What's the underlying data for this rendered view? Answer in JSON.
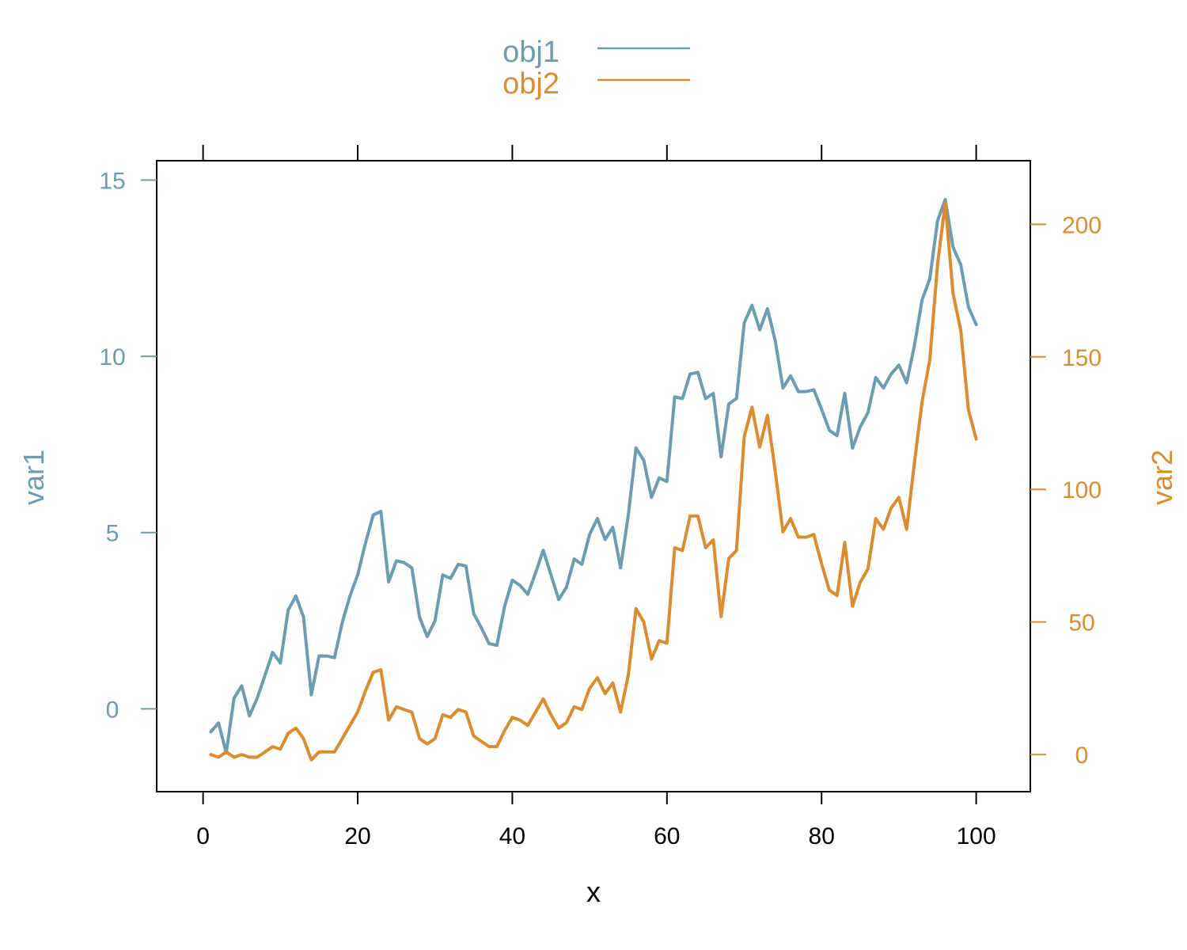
{
  "chart_data": {
    "type": "line",
    "title": "",
    "xlabel": "x",
    "ylabel_left": "var1",
    "ylabel_right": "var2",
    "xlim": [
      -6,
      107
    ],
    "ylim_left": [
      -2.35,
      15.55
    ],
    "ylim_right": [
      -14,
      224
    ],
    "x_ticks": [
      0,
      20,
      40,
      60,
      80,
      100
    ],
    "y_left_ticks": [
      0,
      5,
      10,
      15
    ],
    "y_right_ticks": [
      0,
      50,
      100,
      150,
      200
    ],
    "legend_position": "top-center",
    "x": [
      1,
      2,
      3,
      4,
      5,
      6,
      7,
      8,
      9,
      10,
      11,
      12,
      13,
      14,
      15,
      16,
      17,
      18,
      19,
      20,
      21,
      22,
      23,
      24,
      25,
      26,
      27,
      28,
      29,
      30,
      31,
      32,
      33,
      34,
      35,
      36,
      37,
      38,
      39,
      40,
      41,
      42,
      43,
      44,
      45,
      46,
      47,
      48,
      49,
      50,
      51,
      52,
      53,
      54,
      55,
      56,
      57,
      58,
      59,
      60,
      61,
      62,
      63,
      64,
      65,
      66,
      67,
      68,
      69,
      70,
      71,
      72,
      73,
      74,
      75,
      76,
      77,
      78,
      79,
      80,
      81,
      82,
      83,
      84,
      85,
      86,
      87,
      88,
      89,
      90,
      91,
      92,
      93,
      94,
      95,
      96,
      97,
      98,
      99,
      100
    ],
    "series": [
      {
        "name": "obj1",
        "axis": "left",
        "color": "#6b9cb2",
        "values": [
          -0.65,
          -0.4,
          -1.25,
          0.3,
          0.65,
          -0.2,
          0.3,
          0.95,
          1.6,
          1.3,
          2.8,
          3.2,
          2.6,
          0.4,
          1.5,
          1.5,
          1.45,
          2.45,
          3.2,
          3.8,
          4.7,
          5.5,
          5.6,
          3.6,
          4.2,
          4.15,
          4.0,
          2.6,
          2.05,
          2.5,
          3.8,
          3.7,
          4.1,
          4.05,
          2.7,
          2.3,
          1.85,
          1.8,
          2.9,
          3.65,
          3.5,
          3.25,
          3.85,
          4.5,
          3.8,
          3.1,
          3.45,
          4.25,
          4.1,
          4.95,
          5.4,
          4.8,
          5.15,
          4.0,
          5.5,
          7.4,
          7.05,
          6.0,
          6.55,
          6.45,
          8.85,
          8.8,
          9.5,
          9.55,
          8.8,
          8.95,
          7.15,
          8.65,
          8.8,
          10.95,
          11.45,
          10.75,
          11.35,
          10.45,
          9.1,
          9.45,
          9.0,
          9.0,
          9.05,
          8.5,
          7.9,
          7.75,
          8.95,
          7.4,
          8.0,
          8.4,
          9.4,
          9.1,
          9.5,
          9.75,
          9.25,
          10.3,
          11.6,
          12.2,
          13.85,
          14.45,
          13.1,
          12.6,
          11.4,
          10.9
        ]
      },
      {
        "name": "obj2",
        "axis": "right",
        "color": "#dd8b2f",
        "values": [
          0,
          -1,
          1,
          -1,
          0,
          -1,
          -1,
          1,
          3,
          2,
          8,
          10,
          6,
          -2,
          1,
          1,
          1,
          6,
          11,
          16,
          24,
          31,
          32,
          13,
          18,
          17,
          16,
          6,
          4,
          6,
          15,
          14,
          17,
          16,
          7,
          5,
          3,
          3,
          9,
          14,
          13,
          11,
          16,
          21,
          15,
          10,
          12,
          18,
          17,
          25,
          29,
          23,
          27,
          16,
          30,
          55,
          50,
          36,
          43,
          42,
          78,
          77,
          90,
          90,
          78,
          81,
          52,
          74,
          77,
          120,
          131,
          116,
          128,
          107,
          84,
          89,
          82,
          82,
          83,
          72,
          62,
          60,
          80,
          56,
          65,
          70,
          89,
          85,
          93,
          97,
          85,
          110,
          133,
          149,
          185,
          208,
          174,
          160,
          130,
          119
        ]
      }
    ]
  }
}
